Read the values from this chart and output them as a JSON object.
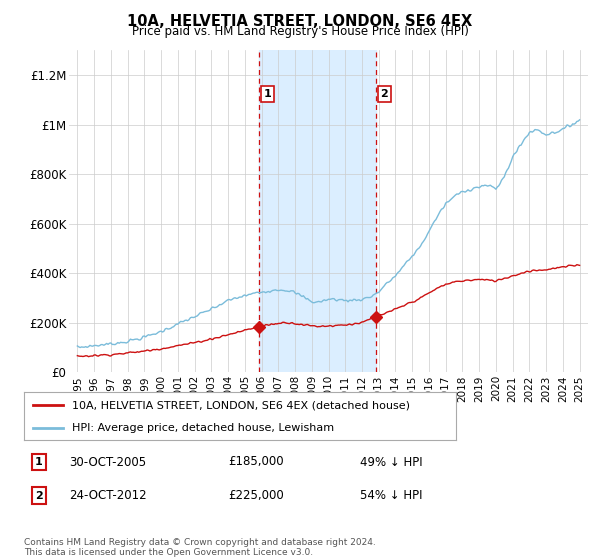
{
  "title": "10A, HELVETIA STREET, LONDON, SE6 4EX",
  "subtitle": "Price paid vs. HM Land Registry's House Price Index (HPI)",
  "footer": "Contains HM Land Registry data © Crown copyright and database right 2024.\nThis data is licensed under the Open Government Licence v3.0.",
  "legend_line1": "10A, HELVETIA STREET, LONDON, SE6 4EX (detached house)",
  "legend_line2": "HPI: Average price, detached house, Lewisham",
  "annotation1_label": "1",
  "annotation1_date": "30-OCT-2005",
  "annotation1_price": "£185,000",
  "annotation1_hpi": "49% ↓ HPI",
  "annotation2_label": "2",
  "annotation2_date": "24-OCT-2012",
  "annotation2_price": "£225,000",
  "annotation2_hpi": "54% ↓ HPI",
  "vline1_x": 2005.83,
  "vline2_x": 2012.81,
  "sale1_x": 2005.83,
  "sale1_y": 185000,
  "sale2_x": 2012.81,
  "sale2_y": 225000,
  "hpi_color": "#7bbcda",
  "price_color": "#cc1111",
  "vline_color": "#cc1111",
  "shade_color": "#dbeeff",
  "background_color": "#ffffff",
  "ylim": [
    0,
    1300000
  ],
  "xlim": [
    1994.5,
    2025.5
  ],
  "yticks": [
    0,
    200000,
    400000,
    600000,
    800000,
    1000000,
    1200000
  ],
  "ytick_labels": [
    "£0",
    "£200K",
    "£400K",
    "£600K",
    "£800K",
    "£1M",
    "£1.2M"
  ],
  "xticks": [
    1995,
    1996,
    1997,
    1998,
    1999,
    2000,
    2001,
    2002,
    2003,
    2004,
    2005,
    2006,
    2007,
    2008,
    2009,
    2010,
    2011,
    2012,
    2013,
    2014,
    2015,
    2016,
    2017,
    2018,
    2019,
    2020,
    2021,
    2022,
    2023,
    2024,
    2025
  ]
}
